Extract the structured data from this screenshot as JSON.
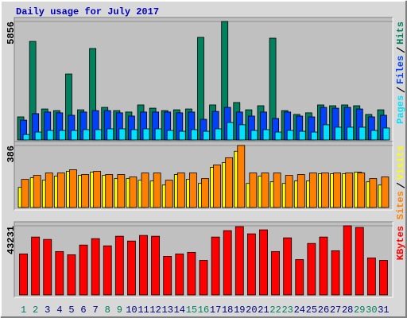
{
  "chart_data": [
    {
      "type": "bar",
      "title": "Daily usage for July 2017",
      "ylim": [
        0,
        5856
      ],
      "yticks": [
        5856
      ],
      "series": [
        {
          "name": "Hits",
          "color": "#00805c",
          "values": [
            1140,
            4870,
            1530,
            1450,
            3260,
            1490,
            4520,
            1610,
            1450,
            1380,
            1730,
            1570,
            1450,
            1490,
            1530,
            5070,
            1730,
            5856,
            1850,
            1490,
            1690,
            5030,
            1450,
            1260,
            1340,
            1730,
            1690,
            1730,
            1690,
            1260,
            1490
          ]
        },
        {
          "name": "Files",
          "color": "#0040ff",
          "values": [
            980,
            1300,
            1380,
            1340,
            1220,
            1380,
            1450,
            1450,
            1340,
            1180,
            1380,
            1380,
            1380,
            1340,
            1380,
            1020,
            1410,
            1610,
            1380,
            1180,
            1380,
            1060,
            1380,
            1180,
            1140,
            1610,
            1570,
            1610,
            1530,
            1140,
            1220
          ]
        },
        {
          "name": "Pages",
          "color": "#00e0ff",
          "values": [
            270,
            390,
            470,
            470,
            470,
            510,
            510,
            550,
            550,
            510,
            550,
            550,
            470,
            430,
            510,
            430,
            550,
            860,
            750,
            470,
            510,
            390,
            470,
            430,
            390,
            750,
            630,
            630,
            630,
            470,
            590
          ]
        }
      ]
    },
    {
      "type": "bar",
      "ylim": [
        0,
        386
      ],
      "yticks": [
        386
      ],
      "series": [
        {
          "name": "Visits",
          "color": "#ffff00",
          "values": [
            125,
            185,
            170,
            195,
            225,
            200,
            220,
            200,
            180,
            180,
            170,
            165,
            140,
            205,
            175,
            150,
            250,
            280,
            350,
            150,
            195,
            160,
            150,
            165,
            165,
            210,
            210,
            210,
            220,
            160,
            140
          ]
        },
        {
          "name": "Sites",
          "color": "#ff8000",
          "values": [
            175,
            200,
            215,
            215,
            235,
            205,
            225,
            205,
            205,
            190,
            215,
            215,
            170,
            215,
            215,
            180,
            265,
            310,
            386,
            215,
            215,
            215,
            200,
            205,
            215,
            215,
            215,
            215,
            215,
            180,
            190
          ]
        }
      ]
    },
    {
      "type": "bar",
      "ylim": [
        0,
        43231
      ],
      "yticks": [
        43231
      ],
      "categories": [
        "1",
        "2",
        "3",
        "4",
        "5",
        "6",
        "7",
        "8",
        "9",
        "10",
        "11",
        "12",
        "13",
        "14",
        "15",
        "16",
        "17",
        "18",
        "19",
        "20",
        "21",
        "22",
        "23",
        "24",
        "25",
        "26",
        "27",
        "28",
        "29",
        "30",
        "31"
      ],
      "category_colors": [
        "#00805c",
        "#00805c",
        "#000080",
        "#000080",
        "#000080",
        "#000080",
        "#000080",
        "#00805c",
        "#00805c",
        "#000080",
        "#000080",
        "#000080",
        "#000080",
        "#000080",
        "#00805c",
        "#00805c",
        "#000080",
        "#000080",
        "#000080",
        "#000080",
        "#000080",
        "#00805c",
        "#00805c",
        "#000080",
        "#000080",
        "#000080",
        "#000080",
        "#000080",
        "#00805c",
        "#00805c",
        "#000080"
      ],
      "series": [
        {
          "name": "KBytes",
          "color": "#ff0000",
          "values": [
            25650,
            36200,
            34700,
            27150,
            25150,
            31200,
            35200,
            30700,
            36700,
            33700,
            37200,
            36700,
            24150,
            25650,
            26650,
            21600,
            36200,
            40200,
            42700,
            38200,
            40700,
            27150,
            35700,
            22100,
            32200,
            36200,
            27650,
            43231,
            42200,
            23150,
            21600
          ]
        }
      ]
    }
  ]
}
